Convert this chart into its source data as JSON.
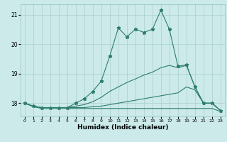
{
  "xlabel": "Humidex (Indice chaleur)",
  "bg_color": "#cceaea",
  "grid_color": "#aacece",
  "line_color": "#2e7d6e",
  "xlim": [
    -0.5,
    23.5
  ],
  "ylim": [
    17.55,
    21.35
  ],
  "yticks": [
    18,
    19,
    20,
    21
  ],
  "xticks": [
    0,
    1,
    2,
    3,
    4,
    5,
    6,
    7,
    8,
    9,
    10,
    11,
    12,
    13,
    14,
    15,
    16,
    17,
    18,
    19,
    20,
    21,
    22,
    23
  ],
  "line1_x": [
    0,
    1,
    2,
    3,
    4,
    5,
    6,
    7,
    8,
    9,
    10,
    11,
    12,
    13,
    14,
    15,
    16,
    17,
    18,
    19,
    20,
    21,
    22,
    23
  ],
  "line1_y": [
    18.0,
    17.9,
    17.85,
    17.85,
    17.85,
    17.85,
    18.0,
    18.15,
    18.4,
    18.75,
    19.6,
    20.55,
    20.25,
    20.5,
    20.4,
    20.5,
    21.15,
    20.5,
    19.25,
    19.3,
    18.55,
    18.0,
    18.0,
    17.75
  ],
  "line2_x": [
    0,
    1,
    2,
    3,
    4,
    5,
    6,
    7,
    8,
    9,
    10,
    11,
    12,
    13,
    14,
    15,
    16,
    17,
    18,
    19,
    20,
    21,
    22,
    23
  ],
  "line2_y": [
    18.0,
    17.9,
    17.85,
    17.85,
    17.85,
    17.85,
    17.9,
    17.95,
    18.05,
    18.2,
    18.4,
    18.55,
    18.7,
    18.82,
    18.95,
    19.05,
    19.2,
    19.28,
    19.2,
    19.28,
    18.55,
    18.0,
    18.0,
    17.75
  ],
  "line3_x": [
    0,
    1,
    2,
    3,
    4,
    5,
    6,
    7,
    8,
    9,
    10,
    11,
    12,
    13,
    14,
    15,
    16,
    17,
    18,
    19,
    20,
    21,
    22,
    23
  ],
  "line3_y": [
    18.0,
    17.9,
    17.85,
    17.85,
    17.85,
    17.85,
    17.85,
    17.85,
    17.88,
    17.9,
    17.95,
    18.0,
    18.05,
    18.1,
    18.15,
    18.2,
    18.25,
    18.3,
    18.35,
    18.55,
    18.45,
    18.0,
    18.0,
    17.75
  ],
  "line4_x": [
    0,
    1,
    2,
    3,
    4,
    5,
    6,
    7,
    8,
    9,
    10,
    11,
    12,
    13,
    14,
    15,
    16,
    17,
    18,
    19,
    20,
    21,
    22,
    23
  ],
  "line4_y": [
    18.0,
    17.88,
    17.82,
    17.82,
    17.82,
    17.82,
    17.82,
    17.82,
    17.82,
    17.82,
    17.82,
    17.82,
    17.82,
    17.82,
    17.82,
    17.82,
    17.82,
    17.82,
    17.82,
    17.82,
    17.82,
    17.82,
    17.82,
    17.72
  ]
}
